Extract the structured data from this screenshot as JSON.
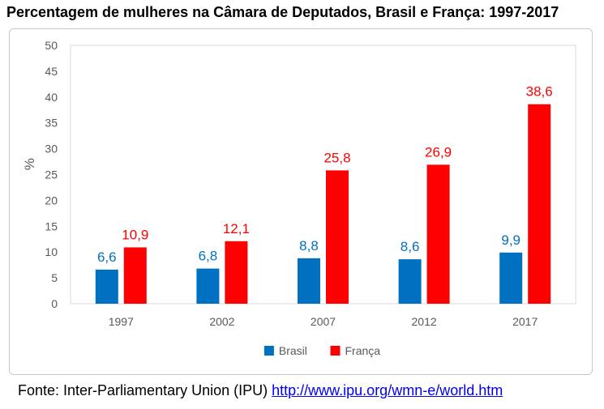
{
  "chart_data": {
    "type": "bar",
    "title": "Percentagem de mulheres na Câmara de Deputados, Brasil e França: 1997-2017",
    "ylabel": "%",
    "xlabel": "",
    "categories": [
      "1997",
      "2002",
      "2007",
      "2012",
      "2017"
    ],
    "series": [
      {
        "name": "Brasil",
        "color": "#0070c0",
        "values": [
          6.6,
          6.8,
          8.8,
          8.6,
          9.9
        ],
        "labels": [
          "6,6",
          "6,8",
          "8,8",
          "8,6",
          "9,9"
        ]
      },
      {
        "name": "França",
        "color": "#ff0000",
        "values": [
          10.9,
          12.1,
          25.8,
          26.9,
          38.6
        ],
        "labels": [
          "10,9",
          "12,1",
          "25,8",
          "26,9",
          "38,6"
        ]
      }
    ],
    "ylim": [
      0,
      50
    ],
    "yticks": [
      "0",
      "5",
      "10",
      "15",
      "20",
      "25",
      "30",
      "35",
      "40",
      "45",
      "50"
    ],
    "grid": false,
    "legend_position": "bottom"
  },
  "source": {
    "prefix": "Fonte: Inter-Parliamentary Union (IPU) ",
    "link_text": "http://www.ipu.org/wmn-e/world.htm"
  }
}
